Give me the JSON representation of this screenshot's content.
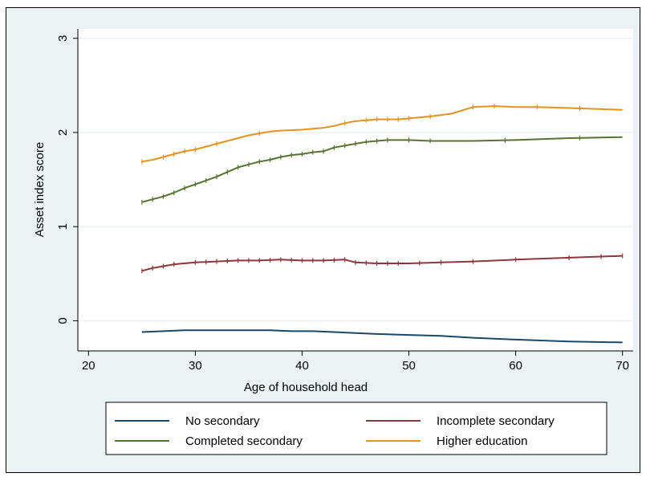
{
  "chart_data": {
    "type": "line",
    "title": "",
    "xlabel": "Age of household head",
    "ylabel": "Asset index score",
    "xlim": [
      19,
      71
    ],
    "ylim": [
      -0.32,
      3.1
    ],
    "xticks": [
      20,
      30,
      40,
      50,
      60,
      70
    ],
    "xtick_labels": [
      "20",
      "30",
      "40",
      "50",
      "60",
      "70"
    ],
    "yticks": [
      0,
      1,
      2,
      3
    ],
    "ytick_labels": [
      "0",
      "1",
      "2",
      "3"
    ],
    "grid": "horizontal",
    "legend_position": "bottom",
    "series": [
      {
        "name": "No secondary",
        "color": "#1a476f",
        "x": [
          25,
          27,
          29,
          31,
          33,
          35,
          37,
          39,
          41,
          43,
          45,
          47,
          50,
          53,
          56,
          60,
          65,
          70
        ],
        "y": [
          -0.12,
          -0.11,
          -0.1,
          -0.1,
          -0.1,
          -0.1,
          -0.1,
          -0.11,
          -0.11,
          -0.12,
          -0.13,
          -0.14,
          -0.15,
          -0.16,
          -0.18,
          -0.2,
          -0.22,
          -0.23
        ],
        "ticks": []
      },
      {
        "name": "Incomplete secondary",
        "color": "#90353b",
        "x": [
          25,
          26,
          27,
          28,
          30,
          32,
          34,
          36,
          38,
          40,
          42,
          44,
          45,
          47,
          49,
          50,
          53,
          56,
          60,
          65,
          70
        ],
        "y": [
          0.53,
          0.56,
          0.58,
          0.6,
          0.62,
          0.63,
          0.64,
          0.64,
          0.65,
          0.64,
          0.64,
          0.65,
          0.62,
          0.61,
          0.61,
          0.61,
          0.62,
          0.63,
          0.65,
          0.67,
          0.69
        ],
        "ticks": [
          25,
          26,
          27,
          28,
          30,
          31,
          32,
          33,
          34,
          35,
          36,
          37,
          38,
          39,
          40,
          41,
          42,
          43,
          44,
          45,
          46,
          47,
          48,
          49,
          51,
          53,
          56,
          60,
          65,
          68,
          70
        ]
      },
      {
        "name": "Completed secondary",
        "color": "#55752f",
        "x": [
          25,
          26,
          27,
          28,
          29,
          30,
          31,
          32,
          33,
          34,
          35,
          36,
          37,
          38,
          39,
          40,
          41,
          42,
          43,
          44,
          45,
          46,
          47,
          48,
          50,
          52,
          54,
          56,
          60,
          65,
          70
        ],
        "y": [
          1.26,
          1.29,
          1.32,
          1.36,
          1.41,
          1.45,
          1.49,
          1.53,
          1.58,
          1.63,
          1.66,
          1.69,
          1.71,
          1.74,
          1.76,
          1.77,
          1.79,
          1.8,
          1.84,
          1.86,
          1.88,
          1.9,
          1.91,
          1.92,
          1.92,
          1.91,
          1.91,
          1.91,
          1.92,
          1.94,
          1.95
        ],
        "ticks": [
          25,
          26,
          27,
          28,
          29,
          30,
          31,
          32,
          33,
          34,
          35,
          36,
          37,
          38,
          39,
          40,
          41,
          42,
          43,
          44,
          45,
          46,
          47,
          48,
          50,
          52,
          59,
          66
        ]
      },
      {
        "name": "Higher education",
        "color": "#e5911c",
        "x": [
          25,
          26,
          27,
          28,
          29,
          30,
          31,
          32,
          33,
          34,
          35,
          36,
          37,
          38,
          40,
          42,
          43,
          44,
          45,
          46,
          47,
          48,
          49,
          50,
          52,
          54,
          56,
          58,
          60,
          62,
          65,
          70
        ],
        "y": [
          1.69,
          1.71,
          1.74,
          1.77,
          1.8,
          1.82,
          1.85,
          1.88,
          1.91,
          1.94,
          1.97,
          1.99,
          2.01,
          2.02,
          2.03,
          2.05,
          2.07,
          2.1,
          2.12,
          2.13,
          2.14,
          2.14,
          2.14,
          2.15,
          2.17,
          2.2,
          2.27,
          2.28,
          2.27,
          2.27,
          2.26,
          2.24
        ],
        "ticks": [
          25,
          27,
          28,
          29,
          30,
          32,
          36,
          44,
          46,
          47,
          48,
          49,
          50,
          52,
          56,
          58,
          62,
          66
        ]
      }
    ]
  }
}
